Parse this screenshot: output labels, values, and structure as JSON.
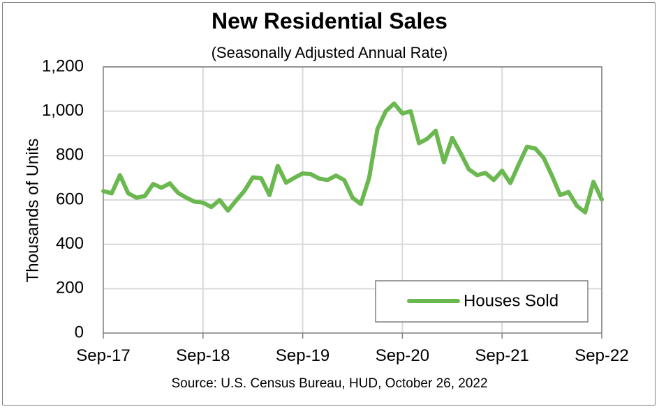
{
  "colors": {
    "series": "#6ab84f",
    "grid": "#d9d9d9",
    "axis": "#7f7f7f",
    "frame": "#7f7f7f"
  },
  "chart_data": {
    "type": "line",
    "title": "New Residential Sales",
    "subtitle": "(Seasonally Adjusted Annual Rate)",
    "ylabel": "Thousands of Units",
    "xlabel": "",
    "source": "Source:  U.S. Census Bureau, HUD, October 26, 2022",
    "ylim": [
      0,
      1200
    ],
    "yticks": [
      0,
      200,
      400,
      600,
      800,
      1000,
      1200
    ],
    "ytick_labels": [
      "0",
      "200",
      "400",
      "600",
      "800",
      "1,000",
      "1,200"
    ],
    "xtick_labels": [
      "Sep-17",
      "Sep-18",
      "Sep-19",
      "Sep-20",
      "Sep-21",
      "Sep-22"
    ],
    "grid": true,
    "legend_position": "bottom-right",
    "series": [
      {
        "name": "Houses Sold",
        "x": [
          "Sep-17",
          "Oct-17",
          "Nov-17",
          "Dec-17",
          "Jan-18",
          "Feb-18",
          "Mar-18",
          "Apr-18",
          "May-18",
          "Jun-18",
          "Jul-18",
          "Aug-18",
          "Sep-18",
          "Oct-18",
          "Nov-18",
          "Dec-18",
          "Jan-19",
          "Feb-19",
          "Mar-19",
          "Apr-19",
          "May-19",
          "Jun-19",
          "Jul-19",
          "Aug-19",
          "Sep-19",
          "Oct-19",
          "Nov-19",
          "Dec-19",
          "Jan-20",
          "Feb-20",
          "Mar-20",
          "Apr-20",
          "May-20",
          "Jun-20",
          "Jul-20",
          "Aug-20",
          "Sep-20",
          "Oct-20",
          "Nov-20",
          "Dec-20",
          "Jan-21",
          "Feb-21",
          "Mar-21",
          "Apr-21",
          "May-21",
          "Jun-21",
          "Jul-21",
          "Aug-21",
          "Sep-21",
          "Oct-21",
          "Nov-21",
          "Dec-21",
          "Jan-22",
          "Feb-22",
          "Mar-22",
          "Apr-22",
          "May-22",
          "Jun-22",
          "Jul-22",
          "Aug-22",
          "Sep-22"
        ],
        "values": [
          640,
          630,
          712,
          630,
          610,
          618,
          672,
          655,
          675,
          632,
          610,
          592,
          588,
          568,
          600,
          552,
          598,
          642,
          702,
          698,
          622,
          754,
          678,
          700,
          720,
          716,
          696,
          690,
          710,
          690,
          610,
          582,
          700,
          920,
          1000,
          1035,
          990,
          1000,
          856,
          876,
          912,
          770,
          880,
          812,
          738,
          712,
          722,
          690,
          732,
          676,
          760,
          840,
          832,
          790,
          710,
          622,
          636,
          574,
          544,
          682,
          602
        ]
      }
    ]
  }
}
